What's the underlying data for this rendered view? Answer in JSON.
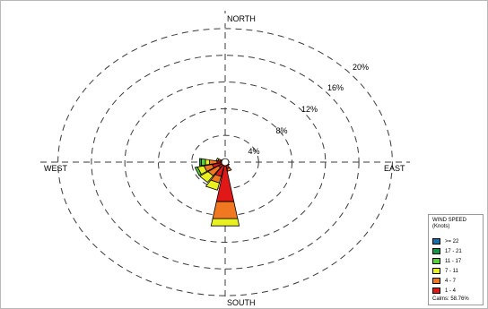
{
  "chart_data": {
    "type": "wind_rose",
    "directions": [
      "N",
      "NNE",
      "NE",
      "ENE",
      "E",
      "ESE",
      "SE",
      "SSE",
      "S",
      "SSW",
      "SW",
      "WSW",
      "W",
      "WNW",
      "NW",
      "NNW"
    ],
    "axis_labels": {
      "north": "NORTH",
      "south": "SOUTH",
      "east": "EAST",
      "west": "WEST"
    },
    "rings": [
      {
        "value": 4,
        "label": "4%"
      },
      {
        "value": 8,
        "label": "8%"
      },
      {
        "value": 12,
        "label": "12%"
      },
      {
        "value": 16,
        "label": "16%"
      },
      {
        "value": 20,
        "label": "20%"
      }
    ],
    "rmax": 22,
    "speed_classes": [
      {
        "label": "1 - 4",
        "color": "#e01818"
      },
      {
        "label": "4 - 7",
        "color": "#f07820"
      },
      {
        "label": "7 - 11",
        "color": "#e8f020"
      },
      {
        "label": "11 - 17",
        "color": "#58d038"
      },
      {
        "label": "17 - 21",
        "color": "#169648"
      },
      {
        "label": ">= 22",
        "color": "#1870a8"
      }
    ],
    "cumulative": [
      {
        "dir": "S",
        "values": [
          6.0,
          8.6,
          9.7,
          9.7,
          9.7,
          9.7
        ]
      },
      {
        "dir": "SSW",
        "values": [
          2.2,
          3.2,
          4.3,
          4.3,
          4.3,
          4.3
        ]
      },
      {
        "dir": "SW",
        "values": [
          1.0,
          2.5,
          3.7,
          3.7,
          3.7,
          3.7
        ]
      },
      {
        "dir": "WSW",
        "values": [
          1.6,
          2.6,
          3.4,
          3.7,
          3.7,
          3.7
        ]
      },
      {
        "dir": "W",
        "values": [
          1.0,
          1.9,
          2.4,
          2.9,
          3.1,
          3.1
        ]
      },
      {
        "dir": "WNW",
        "values": [
          0.6,
          0.9,
          1.1,
          1.1,
          1.1,
          1.1
        ]
      },
      {
        "dir": "NW",
        "values": [
          0.4,
          0.5,
          0.5,
          0.5,
          0.5,
          0.5
        ]
      },
      {
        "dir": "NNW",
        "values": [
          0.3,
          0.3,
          0.3,
          0.3,
          0.3,
          0.3
        ]
      },
      {
        "dir": "N",
        "values": [
          0.3,
          0.3,
          0.3,
          0.3,
          0.3,
          0.3
        ]
      },
      {
        "dir": "NNE",
        "values": [
          0.3,
          0.3,
          0.3,
          0.3,
          0.3,
          0.3
        ]
      },
      {
        "dir": "NE",
        "values": [
          0.3,
          0.3,
          0.3,
          0.3,
          0.3,
          0.3
        ]
      },
      {
        "dir": "ENE",
        "values": [
          0.3,
          0.3,
          0.3,
          0.3,
          0.3,
          0.3
        ]
      },
      {
        "dir": "E",
        "values": [
          0.3,
          0.3,
          0.3,
          0.3,
          0.3,
          0.3
        ]
      },
      {
        "dir": "ESE",
        "values": [
          0.4,
          0.4,
          0.4,
          0.4,
          0.4,
          0.4
        ]
      },
      {
        "dir": "SE",
        "values": [
          0.6,
          0.6,
          0.6,
          0.6,
          0.6,
          0.6
        ]
      },
      {
        "dir": "SSE",
        "values": [
          1.0,
          1.4,
          1.4,
          1.4,
          1.4,
          1.4
        ]
      }
    ],
    "legend": {
      "title_line1": "WIND SPEED",
      "title_line2": "(Knots)",
      "entries": [
        ">= 22",
        "17 - 21",
        "11 - 17",
        "7 - 11",
        "4 - 7",
        "1 - 4"
      ],
      "colors": [
        "#1870a8",
        "#169648",
        "#58d038",
        "#e8f020",
        "#f07820",
        "#e01818"
      ],
      "calms": "Calms: 58.76%"
    }
  }
}
